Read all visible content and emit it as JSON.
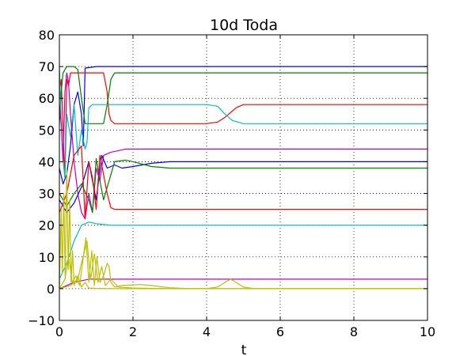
{
  "chart_data": {
    "type": "line",
    "title": "10d Toda",
    "xlabel": "t",
    "ylabel": "",
    "xlim": [
      0,
      10
    ],
    "ylim": [
      -10,
      80
    ],
    "xticks": [
      0,
      2,
      4,
      6,
      8,
      10
    ],
    "yticks": [
      -10,
      0,
      10,
      20,
      30,
      40,
      50,
      60,
      70,
      80
    ],
    "grid": true,
    "legend": "none",
    "series": [
      {
        "color": "#0000ff",
        "x": [
          0,
          0.1,
          0.2,
          0.3,
          0.4,
          0.5,
          0.6,
          0.65,
          0.7,
          1,
          2,
          3,
          4,
          5,
          6,
          7,
          8,
          9,
          10
        ],
        "y": [
          38,
          33,
          36,
          45,
          58,
          62,
          55,
          45,
          69.5,
          70,
          70,
          70,
          70,
          70,
          70,
          70,
          70,
          70,
          70
        ]
      },
      {
        "color": "#ff0000",
        "x": [
          0,
          0.05,
          0.1,
          0.15,
          0.2,
          0.25,
          0.3,
          0.4,
          0.45,
          0.5,
          0.6,
          0.7,
          0.8,
          1.0,
          1.2,
          1.3,
          1.35,
          1.4,
          1.5,
          2,
          3,
          4,
          4.3,
          4.5,
          4.6,
          4.8,
          5,
          6,
          7,
          8,
          9,
          10
        ],
        "y": [
          62,
          66,
          50,
          35,
          66,
          64,
          68,
          68,
          68,
          68,
          68,
          68,
          68,
          68,
          68,
          62,
          55,
          53,
          52,
          52,
          52,
          52,
          52.5,
          54,
          55,
          57,
          58,
          58,
          58,
          58,
          58,
          58
        ]
      },
      {
        "color": "#008000",
        "x": [
          0,
          0.05,
          0.1,
          0.2,
          0.3,
          0.4,
          0.5,
          0.6,
          0.7,
          0.8,
          1.0,
          1.2,
          1.3,
          1.4,
          1.5,
          2,
          3,
          4,
          5,
          6,
          7,
          8,
          9,
          10
        ],
        "y": [
          52,
          62,
          68,
          70,
          70,
          70,
          69,
          60,
          52,
          52,
          52,
          52,
          58,
          66,
          68,
          68,
          68,
          68,
          68,
          68,
          68,
          68,
          68,
          68
        ]
      },
      {
        "color": "#00bfbf",
        "x": [
          0,
          0.05,
          0.1,
          0.15,
          0.2,
          0.3,
          0.4,
          0.5,
          0.6,
          0.7,
          0.75,
          0.8,
          0.9,
          1,
          2,
          3,
          4,
          4.3,
          4.5,
          4.7,
          5,
          6,
          7,
          8,
          9,
          10
        ],
        "y": [
          70,
          52,
          40,
          35,
          55,
          48,
          58,
          42,
          50,
          44,
          46,
          57,
          58,
          58,
          58,
          58,
          58,
          57.5,
          55,
          53,
          52,
          52,
          52,
          52,
          52,
          52
        ]
      },
      {
        "color": "#bf00bf",
        "x": [
          0,
          0.05,
          0.1,
          0.15,
          0.2,
          0.25,
          0.3,
          0.4,
          0.5,
          0.6,
          0.7,
          0.8,
          0.9,
          1.0,
          1.1,
          1.2,
          1.4,
          1.6,
          1.8,
          2,
          3,
          4,
          5,
          6,
          7,
          8,
          9,
          10
        ],
        "y": [
          58,
          52,
          40,
          62,
          68,
          65,
          55,
          40,
          30,
          24,
          22,
          30,
          24,
          38,
          34,
          42,
          43,
          43.5,
          44,
          44,
          44,
          44,
          44,
          44,
          44,
          44,
          44,
          44
        ]
      },
      {
        "color": "#0000ff",
        "x": [
          0,
          0.2,
          0.4,
          0.6,
          0.8,
          1.0,
          1.15,
          1.3,
          1.5,
          1.7,
          2.0,
          2.5,
          3,
          4,
          5,
          6,
          7,
          8,
          9,
          10
        ],
        "y": [
          28,
          24,
          27,
          32,
          40,
          28,
          42,
          38,
          39,
          38,
          38.5,
          39.5,
          40,
          40,
          40,
          40,
          40,
          40,
          40,
          40
        ]
      },
      {
        "color": "#008000",
        "x": [
          0,
          0.2,
          0.4,
          0.6,
          0.8,
          0.9,
          1.0,
          1.1,
          1.2,
          1.5,
          1.8,
          2.0,
          2.5,
          3,
          4,
          5,
          6,
          7,
          8,
          9,
          10
        ],
        "y": [
          30,
          26,
          30,
          33,
          28,
          24,
          41,
          34,
          28,
          40,
          40.5,
          40,
          38.5,
          38,
          38,
          38,
          38,
          38,
          38,
          38,
          38
        ]
      },
      {
        "color": "#ff0000",
        "x": [
          0,
          0.2,
          0.4,
          0.6,
          0.7,
          0.8,
          0.9,
          1.0,
          1.1,
          1.2,
          1.3,
          1.4,
          1.5,
          2,
          3,
          4,
          5,
          6,
          7,
          8,
          9,
          10
        ],
        "y": [
          24,
          30,
          42,
          45,
          22,
          40,
          35,
          25,
          42,
          36,
          30,
          25.5,
          25,
          25,
          25,
          25,
          25,
          25,
          25,
          25,
          25,
          25
        ]
      },
      {
        "color": "#00bfbf",
        "x": [
          0,
          0.2,
          0.4,
          0.6,
          0.8,
          1.0,
          1.2,
          1.4,
          2,
          3,
          4,
          5,
          6,
          7,
          8,
          9,
          10
        ],
        "y": [
          3,
          8,
          15,
          20,
          21,
          20.5,
          20.2,
          20,
          20,
          20,
          20,
          20,
          20,
          20,
          20,
          20,
          20
        ]
      },
      {
        "color": "#bf00bf",
        "x": [
          0,
          0.2,
          0.4,
          0.6,
          0.8,
          1,
          2,
          3,
          4,
          5,
          6,
          7,
          8,
          9,
          10
        ],
        "y": [
          0,
          1,
          2,
          2.5,
          3,
          3,
          3,
          3,
          3,
          3,
          3,
          3,
          3,
          3,
          3
        ]
      },
      {
        "color": "#bfbf00",
        "x": [
          0,
          0.05,
          0.08,
          0.12,
          0.16,
          0.2,
          0.24,
          0.28,
          0.32,
          0.36,
          0.4,
          0.5,
          0.6,
          0.7,
          0.8,
          1,
          1.5,
          2,
          3,
          4,
          5,
          6,
          7,
          8,
          9,
          10
        ],
        "y": [
          0,
          25,
          5,
          30,
          3,
          38,
          6,
          28,
          2,
          12,
          1,
          4,
          0.5,
          2,
          0.2,
          0.1,
          0,
          0,
          0,
          0,
          0,
          0,
          0,
          0,
          0,
          0
        ]
      },
      {
        "color": "#bfbf00",
        "x": [
          0,
          0.15,
          0.25,
          0.35,
          0.45,
          0.55,
          0.65,
          0.72,
          0.8,
          0.88,
          0.95,
          1.02,
          1.1,
          1.2,
          1.3,
          1.35,
          1.4,
          1.5,
          1.7,
          2.0,
          2.2,
          2.5,
          3,
          3.5,
          4,
          4.3,
          4.5,
          4.65,
          4.8,
          5,
          5.3,
          6,
          7,
          8,
          9,
          10
        ],
        "y": [
          0,
          3,
          10,
          2,
          4,
          1,
          10,
          16,
          2,
          12,
          1,
          10,
          2,
          4,
          8,
          7,
          2,
          0.5,
          1,
          1.2,
          1.3,
          1,
          0.3,
          0,
          0,
          0.5,
          2,
          3,
          2,
          0.5,
          0,
          0,
          0,
          0,
          0,
          0
        ]
      },
      {
        "color": "#bfbf00",
        "x": [
          0,
          0.3,
          0.5,
          0.6,
          0.75,
          0.85,
          0.95,
          1.05,
          1.15,
          1.25,
          1.4,
          1.6,
          2,
          3,
          4,
          5,
          6,
          7,
          8,
          9,
          10
        ],
        "y": [
          0,
          1,
          3,
          8,
          15,
          3,
          11,
          2,
          7,
          1,
          3,
          0.5,
          0.2,
          0,
          0,
          0,
          0,
          0,
          0,
          0,
          0
        ]
      }
    ]
  }
}
